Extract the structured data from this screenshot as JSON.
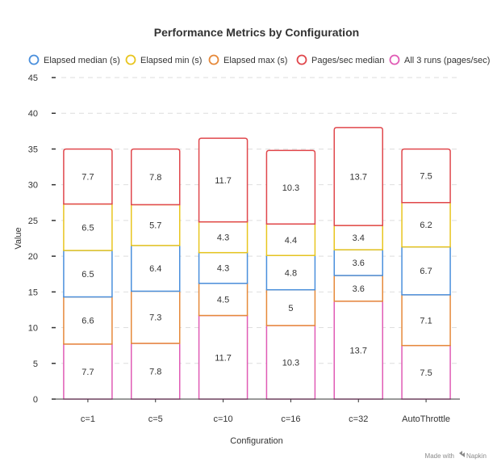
{
  "chart_data": {
    "type": "bar",
    "stacked": true,
    "title": "Performance Metrics by Configuration",
    "xlabel": "Configuration",
    "ylabel": "Value",
    "ylim": [
      0,
      45
    ],
    "yticks": [
      0,
      5,
      10,
      15,
      20,
      25,
      30,
      35,
      40,
      45
    ],
    "grid": true,
    "legend_position": "top",
    "categories": [
      "c=1",
      "c=5",
      "c=10",
      "c=16",
      "c=32",
      "AutoThrottle"
    ],
    "series": [
      {
        "name": "All 3 runs (pages/sec)",
        "color": "#e05bb5",
        "values": [
          7.7,
          7.8,
          11.7,
          10.3,
          13.7,
          7.5
        ]
      },
      {
        "name": "Elapsed max (s)",
        "color": "#e6893a",
        "values": [
          6.6,
          7.3,
          4.5,
          5,
          3.6,
          7.1
        ]
      },
      {
        "name": "Elapsed median (s)",
        "color": "#4a8fdc",
        "values": [
          6.5,
          6.4,
          4.3,
          4.8,
          3.6,
          6.7
        ]
      },
      {
        "name": "Elapsed min (s)",
        "color": "#e8c51f",
        "values": [
          6.5,
          5.7,
          4.3,
          4.4,
          3.4,
          6.2
        ]
      },
      {
        "name": "Pages/sec median",
        "color": "#e0474c",
        "values": [
          7.7,
          7.8,
          11.7,
          10.3,
          13.7,
          7.5
        ]
      }
    ],
    "legend_order": [
      "Elapsed median (s)",
      "Elapsed min (s)",
      "Elapsed max (s)",
      "Pages/sec median",
      "All 3 runs (pages/sec)"
    ]
  },
  "watermark": {
    "prefix": "Made with",
    "brand": "Napkin"
  }
}
